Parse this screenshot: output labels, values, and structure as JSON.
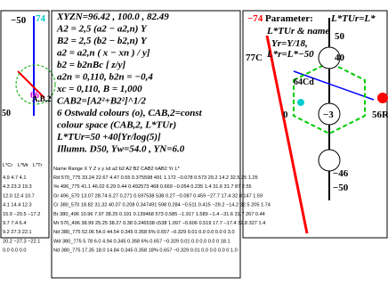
{
  "left": {
    "top_left": "−50",
    "top_right": "74",
    "mid_value": "66",
    "mid_label": "A,B,2",
    "low_value": "50",
    "headers": [
      "L*Cr",
      "L*Mr",
      "L*Tr"
    ],
    "rows": [
      "4.9  4.7  4.1",
      "4.3  23.3  19.3",
      "12.0  12.4  10.7",
      "4.1  14.4  12.3",
      "15.9  −20.5  −17.2",
      "9.7  7.4  6.4",
      "9.2  27.3  22.1",
      "20.2  −27.3  −22.1",
      "0.0  0.0  0.0"
    ]
  },
  "middle": {
    "lines": [
      "XYZN=96.42 , 100.0 , 82.49",
      "A2 = 2,5 (a2 − a2,n) Y",
      "B2 = 2,5 (b2 − b2,n) Y",
      "a2 = a2,n ( x − xn ) / y]",
      "b2 = b2nBc [ z/y]",
      "a2n = 0,110, b2n = −0,4",
      "xc = 0,110, B = 1,000",
      "CAB2=[A2²+B2²]^1/2",
      "6 Ostwald colours (o), CAB,2=const",
      "colour space (CAB,2, L*TUr)",
      "L*TUr=50 +40[Yr/log(5)]",
      "Illumn. D50, Yw=54.0 , YN=6.0"
    ],
    "table_header": "Name Range  X     Y     Z     x     y      λd   a2     b2     A2    B2   CAB2 hAB2 Yr  L*",
    "table_rows": [
      "Rd 570_775 33.24 22.67 4.47 0.55 0.375598 491 1.172 −0.078 0.573 29.2 14.2 32.5 25 1.25",
      "Ye 496_775 41.1 46.02 6.29 0.44 0.492573 468 0.669 −0.054 0.235 1.4 31.6 31.7 87 2.55",
      "Gr 496_570 13.07 28.74 6.27 0.271 0.597538 538 0.27 −0.087 0.459 −27.7 17.4 32.8 147 1.59",
      "Cr 380_570 18.82 31.32 40.07 0.208 0.347491 598 0.284 −0.511 0.415 −29.2 −14.2 32.5 205 1.74",
      "Br 380_496 10.96 7.97 38.25 0.191 0.139468 573 0.585 −1.917 1.589 −1.4 −31.6 31.7 267 0.44",
      "Mr 570_496 38.99 25.25 38.27 0.38 0.246538 c538 1.097 −0.606 0.519 17.7 −17.4 32.8 327 1.4",
      "Nd 380_775 52.06 54.0 44.54 0.345 0.358 6% 0.657 −0.329 0.01 0.0 0.0 0.0 0 3.0",
      "Wd 380_775 5.78 6.0 4.94 0.345 0.358 6% 0.657 −0.329 0.01 0.0 0.0 0.0 0 18.1",
      "Nd 380_775 17.35 18.0 14.84 0.345 0.358 18% 0.657 −0.329 0.01 0.0 0.0 0.0 0 1.0"
    ]
  },
  "right": {
    "minus": "−74",
    "param": "Parameter:",
    "line2": "L*TUr & name",
    "line3": "Yr=Y/18,",
    "line4": "L*r=L*−50",
    "corner": "L*TUr=L*",
    "c77": "77C",
    "c64": "64Cd",
    "t50": "50",
    "t40": "40",
    "t0": "0",
    "tm3": "−3",
    "r56": "56R",
    "tm46": "−46",
    "tm50": "−50"
  }
}
